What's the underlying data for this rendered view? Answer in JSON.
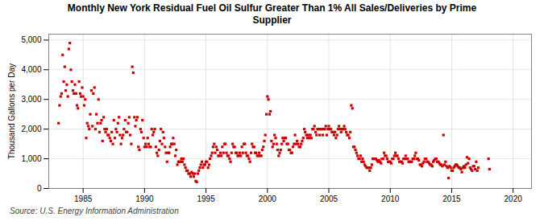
{
  "chart_data": {
    "type": "scatter",
    "title": "Monthly New York Residual Fuel Oil Sulfur Greater Than 1% All Sales/Deliveries by Prime\nSupplier",
    "ylabel": "Thousand Gallons per Day",
    "caption": "Source: U.S. Energy Information Administration",
    "color": "#cc0000",
    "marker": "square",
    "grid": true,
    "xlim": [
      1982.2,
      2021.5
    ],
    "ylim": [
      0,
      5200
    ],
    "xticks": [
      1985,
      1990,
      1995,
      2000,
      2005,
      2010,
      2015,
      2020
    ],
    "yticks": [
      0,
      {
        "value": 1000,
        "label": "1,000"
      },
      {
        "value": 2000,
        "label": "2,000"
      },
      {
        "value": 3000,
        "label": "3,000"
      },
      {
        "value": 4000,
        "label": "4,000"
      },
      {
        "value": 5000,
        "label": "5,000"
      }
    ],
    "x": [
      1983.0,
      1983.08,
      1983.17,
      1983.25,
      1983.33,
      1983.42,
      1983.5,
      1983.58,
      1983.67,
      1983.75,
      1983.83,
      1983.92,
      1984.0,
      1984.08,
      1984.17,
      1984.25,
      1984.33,
      1984.42,
      1984.5,
      1984.58,
      1984.67,
      1984.75,
      1984.83,
      1984.92,
      1985.0,
      1985.08,
      1985.17,
      1985.25,
      1985.33,
      1985.42,
      1985.5,
      1985.58,
      1985.67,
      1985.75,
      1985.83,
      1985.92,
      1986.0,
      1986.08,
      1986.17,
      1986.25,
      1986.33,
      1986.42,
      1986.5,
      1986.58,
      1986.67,
      1986.75,
      1986.83,
      1986.92,
      1987.0,
      1987.08,
      1987.17,
      1987.25,
      1987.33,
      1987.42,
      1987.5,
      1987.58,
      1987.67,
      1987.75,
      1987.83,
      1987.92,
      1988.0,
      1988.08,
      1988.17,
      1988.25,
      1988.33,
      1988.42,
      1988.5,
      1988.58,
      1988.67,
      1988.75,
      1988.83,
      1988.92,
      1989.0,
      1989.08,
      1989.17,
      1989.25,
      1989.33,
      1989.42,
      1989.5,
      1989.58,
      1989.67,
      1989.75,
      1989.83,
      1989.92,
      1990.0,
      1990.08,
      1990.17,
      1990.25,
      1990.33,
      1990.42,
      1990.5,
      1990.58,
      1990.67,
      1990.75,
      1990.83,
      1990.92,
      1991.0,
      1991.08,
      1991.17,
      1991.25,
      1991.33,
      1991.42,
      1991.5,
      1991.58,
      1991.67,
      1991.75,
      1991.83,
      1991.92,
      1992.0,
      1992.08,
      1992.17,
      1992.25,
      1992.33,
      1992.42,
      1992.5,
      1992.58,
      1992.67,
      1992.75,
      1992.83,
      1992.92,
      1993.0,
      1993.08,
      1993.17,
      1993.25,
      1993.33,
      1993.42,
      1993.5,
      1993.58,
      1993.67,
      1993.75,
      1993.83,
      1993.92,
      1994.0,
      1994.08,
      1994.17,
      1994.25,
      1994.33,
      1994.42,
      1994.5,
      1994.58,
      1994.67,
      1994.75,
      1994.83,
      1994.92,
      1995.0,
      1995.08,
      1995.17,
      1995.25,
      1995.33,
      1995.42,
      1995.5,
      1995.58,
      1995.67,
      1995.75,
      1995.83,
      1995.92,
      1996.0,
      1996.08,
      1996.17,
      1996.25,
      1996.33,
      1996.42,
      1996.5,
      1996.58,
      1996.67,
      1996.75,
      1996.83,
      1996.92,
      1997.0,
      1997.08,
      1997.17,
      1997.25,
      1997.33,
      1997.42,
      1997.5,
      1997.58,
      1997.67,
      1997.75,
      1997.83,
      1997.92,
      1998.0,
      1998.08,
      1998.17,
      1998.25,
      1998.33,
      1998.42,
      1998.5,
      1998.58,
      1998.67,
      1998.75,
      1998.83,
      1998.92,
      1999.0,
      1999.08,
      1999.17,
      1999.25,
      1999.33,
      1999.42,
      1999.5,
      1999.58,
      1999.67,
      1999.75,
      1999.83,
      1999.92,
      2000.0,
      2000.08,
      2000.17,
      2000.25,
      2000.33,
      2000.42,
      2000.5,
      2000.58,
      2000.67,
      2000.75,
      2000.83,
      2000.92,
      2001.0,
      2001.08,
      2001.17,
      2001.25,
      2001.33,
      2001.42,
      2001.5,
      2001.58,
      2001.67,
      2001.75,
      2001.83,
      2001.92,
      2002.0,
      2002.08,
      2002.17,
      2002.25,
      2002.33,
      2002.42,
      2002.5,
      2002.58,
      2002.67,
      2002.75,
      2002.83,
      2002.92,
      2003.0,
      2003.08,
      2003.17,
      2003.25,
      2003.33,
      2003.42,
      2003.5,
      2003.58,
      2003.67,
      2003.75,
      2003.83,
      2003.92,
      2004.0,
      2004.08,
      2004.17,
      2004.25,
      2004.33,
      2004.42,
      2004.5,
      2004.58,
      2004.67,
      2004.75,
      2004.83,
      2004.92,
      2005.0,
      2005.08,
      2005.17,
      2005.25,
      2005.33,
      2005.42,
      2005.5,
      2005.58,
      2005.67,
      2005.75,
      2005.83,
      2005.92,
      2006.0,
      2006.08,
      2006.17,
      2006.25,
      2006.33,
      2006.42,
      2006.5,
      2006.58,
      2006.67,
      2006.75,
      2006.83,
      2006.92,
      2007.0,
      2007.08,
      2007.17,
      2007.25,
      2007.33,
      2007.42,
      2007.5,
      2007.58,
      2007.67,
      2007.75,
      2007.83,
      2007.92,
      2008.0,
      2008.08,
      2008.17,
      2008.25,
      2008.33,
      2008.42,
      2008.5,
      2008.58,
      2008.67,
      2008.75,
      2008.83,
      2008.92,
      2009.0,
      2009.08,
      2009.17,
      2009.25,
      2009.33,
      2009.42,
      2009.5,
      2009.58,
      2009.67,
      2009.75,
      2009.83,
      2009.92,
      2010.0,
      2010.08,
      2010.17,
      2010.25,
      2010.33,
      2010.42,
      2010.5,
      2010.58,
      2010.67,
      2010.75,
      2010.83,
      2010.92,
      2011.0,
      2011.08,
      2011.17,
      2011.25,
      2011.33,
      2011.42,
      2011.5,
      2011.58,
      2011.67,
      2011.75,
      2011.83,
      2011.92,
      2012.0,
      2012.08,
      2012.17,
      2012.25,
      2012.33,
      2012.42,
      2012.5,
      2012.58,
      2012.67,
      2012.75,
      2012.83,
      2012.92,
      2013.0,
      2013.08,
      2013.17,
      2013.25,
      2013.33,
      2013.42,
      2013.5,
      2013.58,
      2013.67,
      2013.75,
      2013.83,
      2013.92,
      2014.0,
      2014.08,
      2014.17,
      2014.25,
      2014.33,
      2014.42,
      2014.5,
      2014.58,
      2014.67,
      2014.75,
      2014.83,
      2014.92,
      2015.0,
      2015.08,
      2015.17,
      2015.25,
      2015.33,
      2015.42,
      2015.5,
      2015.58,
      2015.67,
      2015.75,
      2015.83,
      2015.92,
      2016.0,
      2016.08,
      2016.17,
      2016.25,
      2016.33,
      2016.42,
      2016.5,
      2016.58,
      2016.67,
      2016.75,
      2016.83,
      2016.92,
      2017.0,
      2017.08,
      2017.17,
      2018.0,
      2018.08
    ],
    "values": [
      2200,
      2800,
      3100,
      3200,
      4500,
      3600,
      4100,
      3300,
      3500,
      3100,
      4700,
      4900,
      4000,
      3600,
      3300,
      3200,
      3500,
      3200,
      2800,
      2700,
      3600,
      3200,
      3100,
      3400,
      3100,
      2800,
      3000,
      1700,
      2200,
      2100,
      2000,
      2500,
      3300,
      2100,
      3200,
      3400,
      2000,
      2500,
      2200,
      3000,
      1900,
      2200,
      2300,
      1600,
      2400,
      2000,
      1900,
      2000,
      1800,
      1800,
      1700,
      1600,
      1900,
      1500,
      2300,
      1700,
      2000,
      1900,
      2200,
      2400,
      1800,
      1500,
      1700,
      1800,
      2000,
      2300,
      1900,
      1900,
      2200,
      2400,
      1800,
      1500,
      4100,
      3900,
      2400,
      2100,
      2300,
      2400,
      1400,
      1300,
      2000,
      1900,
      2300,
      1700,
      1400,
      1500,
      1400,
      1700,
      1500,
      1400,
      1400,
      2000,
      1800,
      1900,
      2000,
      1400,
      1200,
      1100,
      1300,
      1600,
      2000,
      1500,
      1900,
      1700,
      1400,
      1200,
      900,
      1200,
      1200,
      1400,
      1500,
      1500,
      1700,
      1500,
      1100,
      1300,
      800,
      900,
      900,
      900,
      1000,
      900,
      1000,
      800,
      700,
      600,
      600,
      500,
      500,
      400,
      550,
      500,
      400,
      500,
      250,
      220,
      500,
      600,
      700,
      800,
      900,
      700,
      800,
      800,
      900,
      900,
      700,
      800,
      1000,
      1100,
      1200,
      1400,
      1500,
      1200,
      1400,
      1300,
      1100,
      1100,
      1200,
      1100,
      1400,
      1200,
      1500,
      1500,
      1200,
      1100,
      1100,
      1000,
      900,
      1200,
      1500,
      1400,
      1400,
      1200,
      1200,
      1100,
      1100,
      1200,
      1100,
      1400,
      1200,
      1500,
      1500,
      1200,
      1100,
      1100,
      1000,
      900,
      1200,
      1500,
      1400,
      1400,
      1200,
      1200,
      1100,
      1100,
      1200,
      1100,
      1100,
      1300,
      1400,
      1600,
      1800,
      2500,
      3100,
      3000,
      2500,
      2600,
      1600,
      1400,
      1500,
      1800,
      1700,
      1500,
      1300,
      1100,
      1200,
      1300,
      1500,
      1700,
      1600,
      1700,
      1700,
      1500,
      1500,
      1300,
      1300,
      1200,
      1200,
      1400,
      1500,
      1800,
      1500,
      1600,
      1500,
      1400,
      1400,
      1500,
      1600,
      1700,
      2000,
      1900,
      1800,
      1700,
      1800,
      1700,
      1800,
      1700,
      2000,
      2000,
      2100,
      1900,
      1800,
      2000,
      2000,
      1800,
      2000,
      2000,
      1800,
      2000,
      2000,
      2100,
      1800,
      2000,
      2100,
      2000,
      2000,
      1900,
      1900,
      1800,
      1900,
      1700,
      1800,
      2000,
      2100,
      2000,
      1900,
      2000,
      2000,
      2100,
      2000,
      1900,
      1800,
      1800,
      1700,
      1900,
      2800,
      2700,
      1400,
      1400,
      1300,
      1200,
      1100,
      1000,
      1000,
      1100,
      900,
      1000,
      900,
      800,
      750,
      700,
      700,
      700,
      600,
      700,
      800,
      1000,
      1000,
      1000,
      1000,
      950,
      900,
      950,
      900,
      850,
      1000,
      1000,
      1200,
      1100,
      1100,
      1000,
      900,
      900,
      900,
      850,
      1000,
      1000,
      1100,
      1200,
      1100,
      1100,
      1000,
      900,
      900,
      900,
      850,
      1000,
      1000,
      1100,
      1000,
      1000,
      900,
      900,
      900,
      900,
      1000,
      1000,
      1100,
      1200,
      1000,
      1000,
      950,
      800,
      800,
      750,
      850,
      900,
      1000,
      1000,
      900,
      900,
      850,
      800,
      800,
      750,
      900,
      950,
      1000,
      1000,
      900,
      900,
      850,
      800,
      800,
      750,
      1800,
      800,
      900,
      750,
      700,
      350,
      750,
      700,
      600,
      600,
      700,
      750,
      800,
      800,
      750,
      700,
      700,
      650,
      550,
      700,
      750,
      700,
      800,
      1050,
      850,
      1000,
      700,
      650,
      600,
      750,
      750,
      650,
      900,
      600,
      700,
      1000,
      650
    ]
  }
}
